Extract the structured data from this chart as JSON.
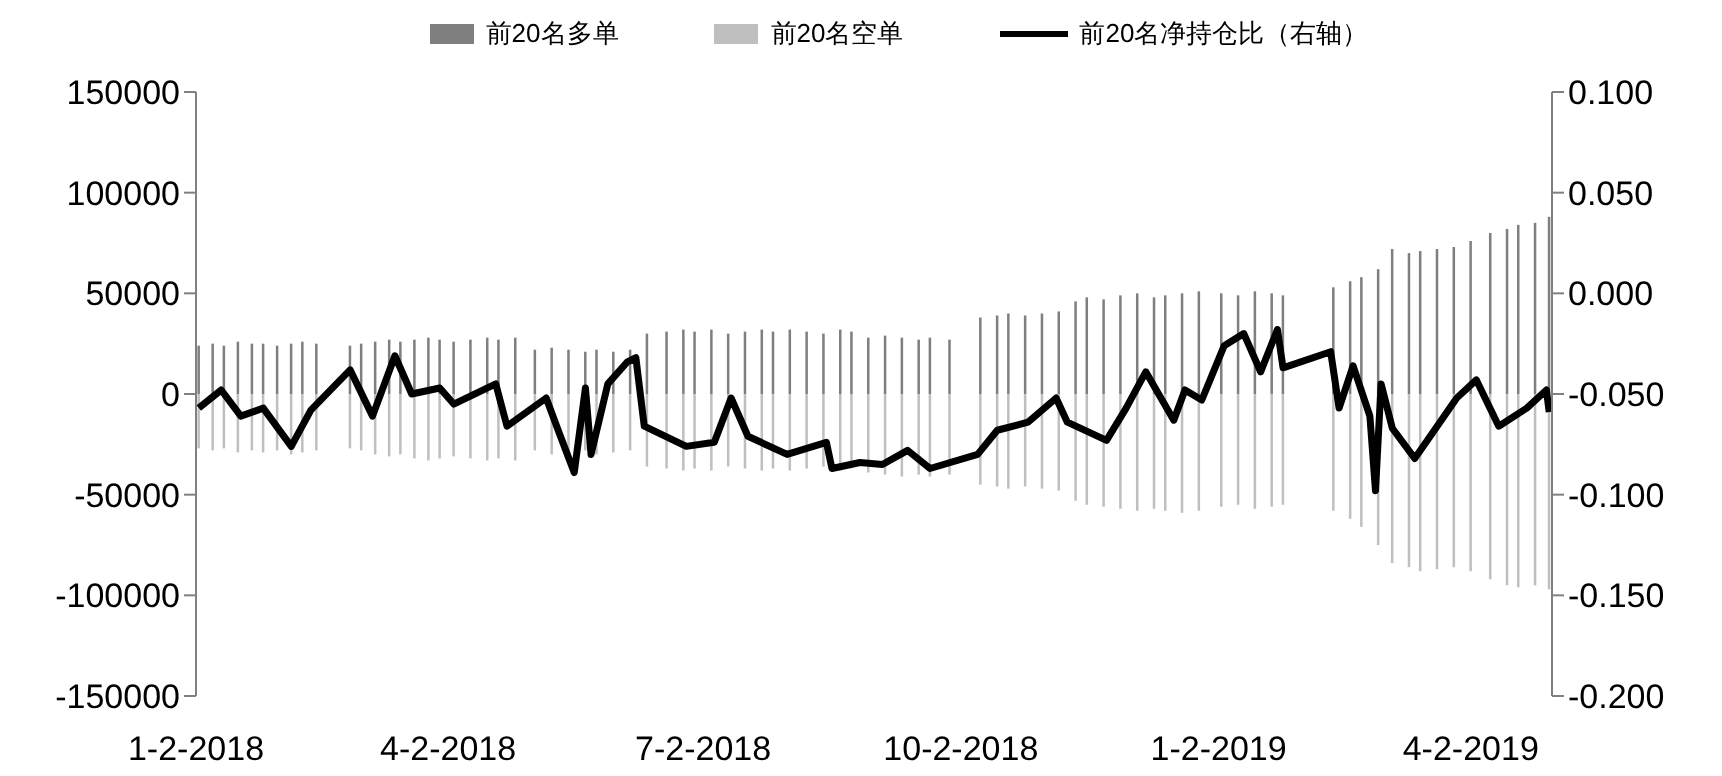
{
  "chart_data": {
    "type": "bar",
    "stacked": true,
    "legend": "top",
    "grid": false,
    "marker": "none",
    "line_style": "solid",
    "xlim": [
      "2018-01-02",
      "2019-05-01"
    ],
    "xticks": [
      {
        "value": "2018-01-02",
        "label": "1-2-2018"
      },
      {
        "value": "2018-04-02",
        "label": "4-2-2018"
      },
      {
        "value": "2018-07-02",
        "label": "7-2-2018"
      },
      {
        "value": "2018-10-02",
        "label": "10-2-2018"
      },
      {
        "value": "2019-01-02",
        "label": "1-2-2019"
      },
      {
        "value": "2019-04-02",
        "label": "4-2-2019"
      }
    ],
    "ylim": [
      -150000,
      150000
    ],
    "yticks": [
      -150000,
      -100000,
      -50000,
      0,
      50000,
      100000,
      150000
    ],
    "y2lim": [
      -0.2,
      0.1
    ],
    "y2ticks": [
      {
        "value": -0.2,
        "label": "-0.200"
      },
      {
        "value": -0.15,
        "label": "-0.150"
      },
      {
        "value": -0.1,
        "label": "-0.100"
      },
      {
        "value": -0.05,
        "label": "-0.050"
      },
      {
        "value": 0,
        "label": "0.000"
      },
      {
        "value": 0.05,
        "label": "0.050"
      },
      {
        "value": 0.1,
        "label": "0.100"
      }
    ],
    "x": [
      "2018-01-03",
      "2018-01-08",
      "2018-01-12",
      "2018-01-17",
      "2018-01-22",
      "2018-01-26",
      "2018-01-31",
      "2018-02-05",
      "2018-02-09",
      "2018-02-14",
      "2018-02-26",
      "2018-03-02",
      "2018-03-07",
      "2018-03-12",
      "2018-03-16",
      "2018-03-21",
      "2018-03-26",
      "2018-03-30",
      "2018-04-04",
      "2018-04-10",
      "2018-04-16",
      "2018-04-20",
      "2018-04-26",
      "2018-05-03",
      "2018-05-09",
      "2018-05-15",
      "2018-05-21",
      "2018-05-25",
      "2018-05-31",
      "2018-06-06",
      "2018-06-12",
      "2018-06-19",
      "2018-06-25",
      "2018-06-29",
      "2018-07-05",
      "2018-07-11",
      "2018-07-17",
      "2018-07-23",
      "2018-07-27",
      "2018-08-02",
      "2018-08-08",
      "2018-08-14",
      "2018-08-20",
      "2018-08-24",
      "2018-08-30",
      "2018-09-05",
      "2018-09-11",
      "2018-09-17",
      "2018-09-21",
      "2018-09-28",
      "2018-10-09",
      "2018-10-15",
      "2018-10-19",
      "2018-10-25",
      "2018-10-31",
      "2018-11-06",
      "2018-11-12",
      "2018-11-16",
      "2018-11-22",
      "2018-11-28",
      "2018-12-04",
      "2018-12-10",
      "2018-12-14",
      "2018-12-20",
      "2018-12-26",
      "2019-01-03",
      "2019-01-09",
      "2019-01-15",
      "2019-01-21",
      "2019-01-25",
      "2019-02-12",
      "2019-02-18",
      "2019-02-22",
      "2019-02-28",
      "2019-03-05",
      "2019-03-11",
      "2019-03-15",
      "2019-03-21",
      "2019-03-27",
      "2019-04-02",
      "2019-04-09",
      "2019-04-15",
      "2019-04-19",
      "2019-04-25",
      "2019-04-30"
    ],
    "series": [
      {
        "name": "前20名多单",
        "color": "#7f7f7f",
        "values": [
          24000,
          25000,
          24000,
          26000,
          25000,
          25000,
          24000,
          25000,
          26000,
          25000,
          24000,
          25000,
          26000,
          27000,
          26000,
          27000,
          28000,
          27000,
          26000,
          27000,
          28000,
          27000,
          28000,
          22000,
          23000,
          22000,
          21000,
          22000,
          21000,
          22000,
          30000,
          31000,
          32000,
          31000,
          32000,
          30000,
          31000,
          32000,
          31000,
          32000,
          31000,
          30000,
          32000,
          31000,
          28000,
          29000,
          28000,
          27000,
          28000,
          27000,
          38000,
          39000,
          40000,
          39000,
          40000,
          41000,
          46000,
          48000,
          47000,
          49000,
          50000,
          48000,
          49000,
          50000,
          51000,
          50000,
          49000,
          51000,
          50000,
          49000,
          53000,
          56000,
          58000,
          62000,
          72000,
          70000,
          71000,
          72000,
          73000,
          76000,
          80000,
          82000,
          84000,
          85000,
          88000
        ]
      },
      {
        "name": "前20名空单",
        "color": "#bfbfbf",
        "values": [
          -27000,
          -28000,
          -27000,
          -29000,
          -28000,
          -29000,
          -28000,
          -30000,
          -29000,
          -28000,
          -27000,
          -28000,
          -30000,
          -31000,
          -30000,
          -32000,
          -33000,
          -32000,
          -31000,
          -32000,
          -33000,
          -32000,
          -33000,
          -28000,
          -30000,
          -29000,
          -28000,
          -30000,
          -29000,
          -28000,
          -36000,
          -37000,
          -38000,
          -37000,
          -38000,
          -36000,
          -37000,
          -38000,
          -37000,
          -38000,
          -37000,
          -36000,
          -38000,
          -37000,
          -39000,
          -40000,
          -41000,
          -40000,
          -41000,
          -40000,
          -45000,
          -46000,
          -47000,
          -46000,
          -47000,
          -48000,
          -53000,
          -55000,
          -56000,
          -57000,
          -58000,
          -57000,
          -58000,
          -59000,
          -58000,
          -56000,
          -55000,
          -57000,
          -56000,
          -55000,
          -58000,
          -62000,
          -66000,
          -75000,
          -84000,
          -86000,
          -88000,
          -87000,
          -86000,
          -88000,
          -92000,
          -95000,
          -96000,
          -95000,
          -97000
        ]
      },
      {
        "name": "前20名净持仓比（右轴）",
        "type": "line",
        "axis": "y2",
        "color": "#000000",
        "x": [
          "2018-01-03",
          "2018-01-11",
          "2018-01-18",
          "2018-01-26",
          "2018-02-05",
          "2018-02-12",
          "2018-02-26",
          "2018-03-06",
          "2018-03-14",
          "2018-03-20",
          "2018-03-30",
          "2018-04-04",
          "2018-04-19",
          "2018-04-23",
          "2018-05-07",
          "2018-05-11",
          "2018-05-17",
          "2018-05-21",
          "2018-05-23",
          "2018-05-29",
          "2018-06-05",
          "2018-06-08",
          "2018-06-11",
          "2018-06-26",
          "2018-07-06",
          "2018-07-12",
          "2018-07-18",
          "2018-08-01",
          "2018-08-15",
          "2018-08-17",
          "2018-08-27",
          "2018-09-04",
          "2018-09-13",
          "2018-09-21",
          "2018-10-08",
          "2018-10-15",
          "2018-10-26",
          "2018-11-05",
          "2018-11-09",
          "2018-11-23",
          "2018-11-30",
          "2018-12-07",
          "2018-12-17",
          "2018-12-21",
          "2018-12-27",
          "2019-01-04",
          "2019-01-11",
          "2019-01-17",
          "2019-01-23",
          "2019-01-25",
          "2019-02-11",
          "2019-02-14",
          "2019-02-19",
          "2019-02-25",
          "2019-02-27",
          "2019-03-01",
          "2019-03-05",
          "2019-03-13",
          "2019-03-22",
          "2019-03-28",
          "2019-04-04",
          "2019-04-12",
          "2019-04-22",
          "2019-04-29",
          "2019-04-30"
        ],
        "values": [
          -0.057,
          -0.048,
          -0.061,
          -0.057,
          -0.076,
          -0.058,
          -0.038,
          -0.061,
          -0.031,
          -0.05,
          -0.047,
          -0.055,
          -0.045,
          -0.066,
          -0.052,
          -0.067,
          -0.089,
          -0.047,
          -0.08,
          -0.045,
          -0.034,
          -0.032,
          -0.066,
          -0.076,
          -0.074,
          -0.052,
          -0.071,
          -0.08,
          -0.074,
          -0.087,
          -0.084,
          -0.085,
          -0.078,
          -0.087,
          -0.08,
          -0.068,
          -0.064,
          -0.052,
          -0.064,
          -0.073,
          -0.057,
          -0.039,
          -0.063,
          -0.048,
          -0.053,
          -0.026,
          -0.02,
          -0.039,
          -0.018,
          -0.037,
          -0.029,
          -0.057,
          -0.036,
          -0.061,
          -0.098,
          -0.045,
          -0.067,
          -0.082,
          -0.064,
          -0.052,
          -0.043,
          -0.066,
          -0.057,
          -0.048,
          -0.059
        ]
      }
    ]
  }
}
